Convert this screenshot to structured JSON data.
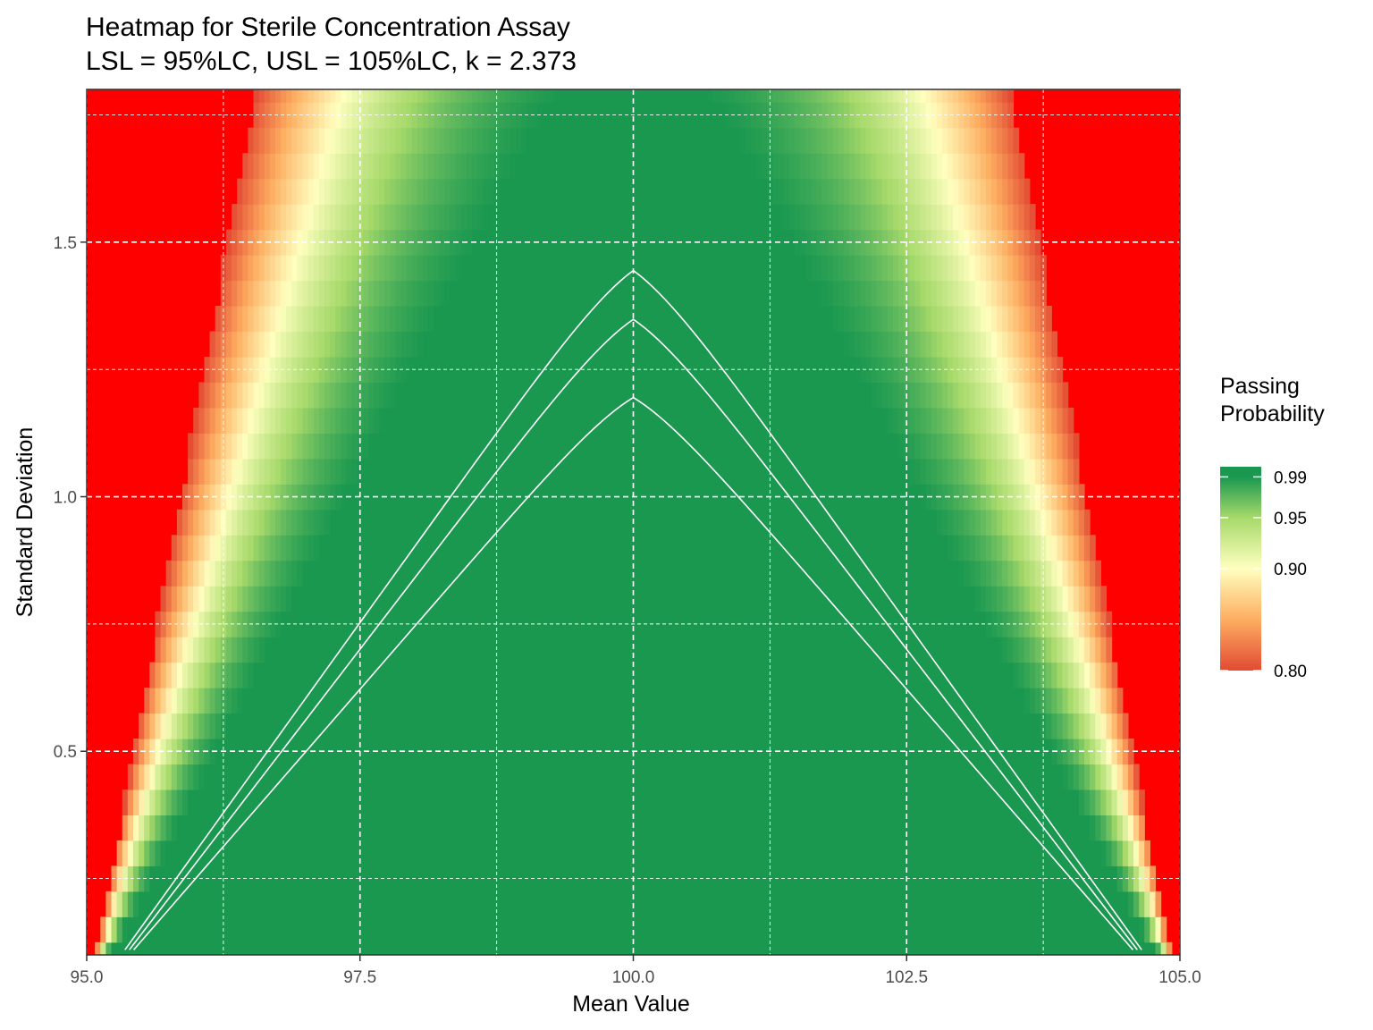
{
  "chart_data": {
    "type": "heatmap",
    "title": "Heatmap for Sterile Concentration Assay",
    "subtitle": "LSL = 95%LC, USL = 105%LC, k = 2.373",
    "xlabel": "Mean Value",
    "ylabel": "Standard Deviation",
    "xlim": [
      95.0,
      105.0
    ],
    "ylim": [
      0.1,
      1.8
    ],
    "x_ticks": [
      95.0,
      97.5,
      100.0,
      102.5,
      105.0
    ],
    "x_tick_labels": [
      "95.0",
      "97.5",
      "100.0",
      "102.5",
      "105.0"
    ],
    "y_ticks": [
      0.5,
      1.0,
      1.5
    ],
    "y_tick_labels": [
      "0.5",
      "1.0",
      "1.5"
    ],
    "grid": true,
    "lsl": 95,
    "usl": 105,
    "k": 2.373,
    "legend": {
      "title_line1": "Passing",
      "title_line2": "Probability",
      "placement": "right",
      "range": [
        0.8,
        1.0
      ],
      "ticks": [
        0.99,
        0.95,
        0.9,
        0.8
      ],
      "tick_labels": [
        "0.99",
        "0.95",
        "0.90",
        "0.80"
      ]
    },
    "colors": {
      "below_range": "#ff0000",
      "p080": "#e34a33",
      "p085": "#fdae61",
      "p090": "#ffffbf",
      "p095": "#a6d96a",
      "p099": "#1a9850",
      "contour": "#ffffff",
      "grid": "#ffffff",
      "border": "#333333"
    },
    "contours": [
      {
        "level": 0.9,
        "peak_sd": 1.5
      },
      {
        "level": 0.95,
        "peak_sd": 1.4
      },
      {
        "level": 0.99,
        "peak_sd": 1.24
      }
    ]
  }
}
